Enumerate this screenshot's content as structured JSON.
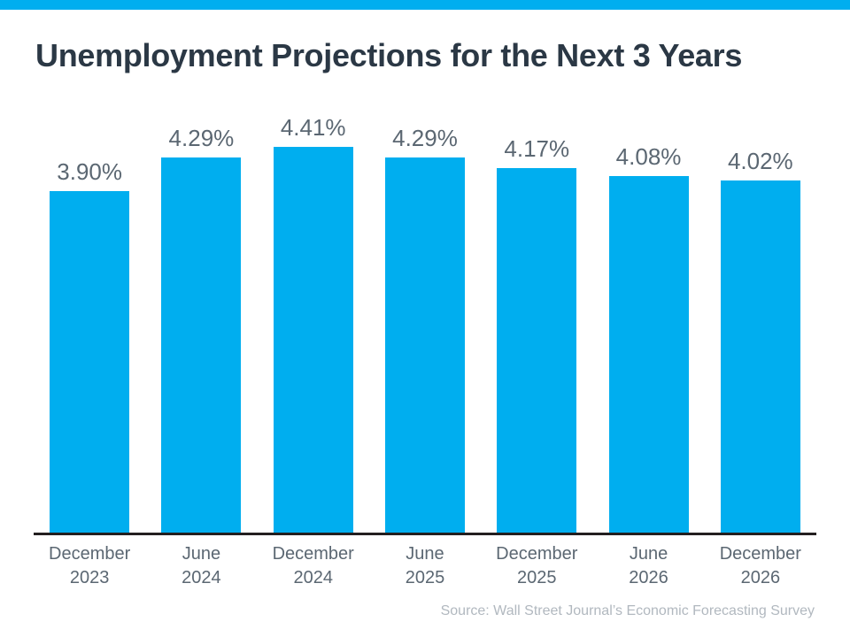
{
  "page": {
    "title": "Unemployment Projections for the Next 3 Years",
    "source": "Source: Wall Street Journal’s Economic Forecasting Survey"
  },
  "colors": {
    "accent_bar": "#00AEEF",
    "header_strip": "#00AEEF",
    "title_text": "#2B3845",
    "value_label_text": "#5B6772",
    "axis_label_text": "#5B6772",
    "axis_line": "#231F20",
    "source_text": "#B1B8BF"
  },
  "chart_data": {
    "type": "bar",
    "title": "Unemployment Projections for the Next 3 Years",
    "categories": [
      "December 2023",
      "June 2024",
      "December 2024",
      "June 2025",
      "December 2025",
      "June 2026",
      "December 2026"
    ],
    "category_lines": [
      [
        "December",
        "2023"
      ],
      [
        "June",
        "2024"
      ],
      [
        "December",
        "2024"
      ],
      [
        "June",
        "2025"
      ],
      [
        "December",
        "2025"
      ],
      [
        "June",
        "2026"
      ],
      [
        "December",
        "2026"
      ]
    ],
    "values": [
      3.9,
      4.29,
      4.41,
      4.29,
      4.17,
      4.08,
      4.02
    ],
    "value_labels": [
      "3.90%",
      "4.29%",
      "4.41%",
      "4.29%",
      "4.17%",
      "4.08%",
      "4.02%"
    ],
    "unit": "%",
    "xlabel": "",
    "ylabel": "",
    "ylim": [
      0,
      4.85
    ],
    "grid": false,
    "legend": false,
    "bar_color": "#00AEEF",
    "source": "Source: Wall Street Journal’s Economic Forecasting Survey"
  }
}
